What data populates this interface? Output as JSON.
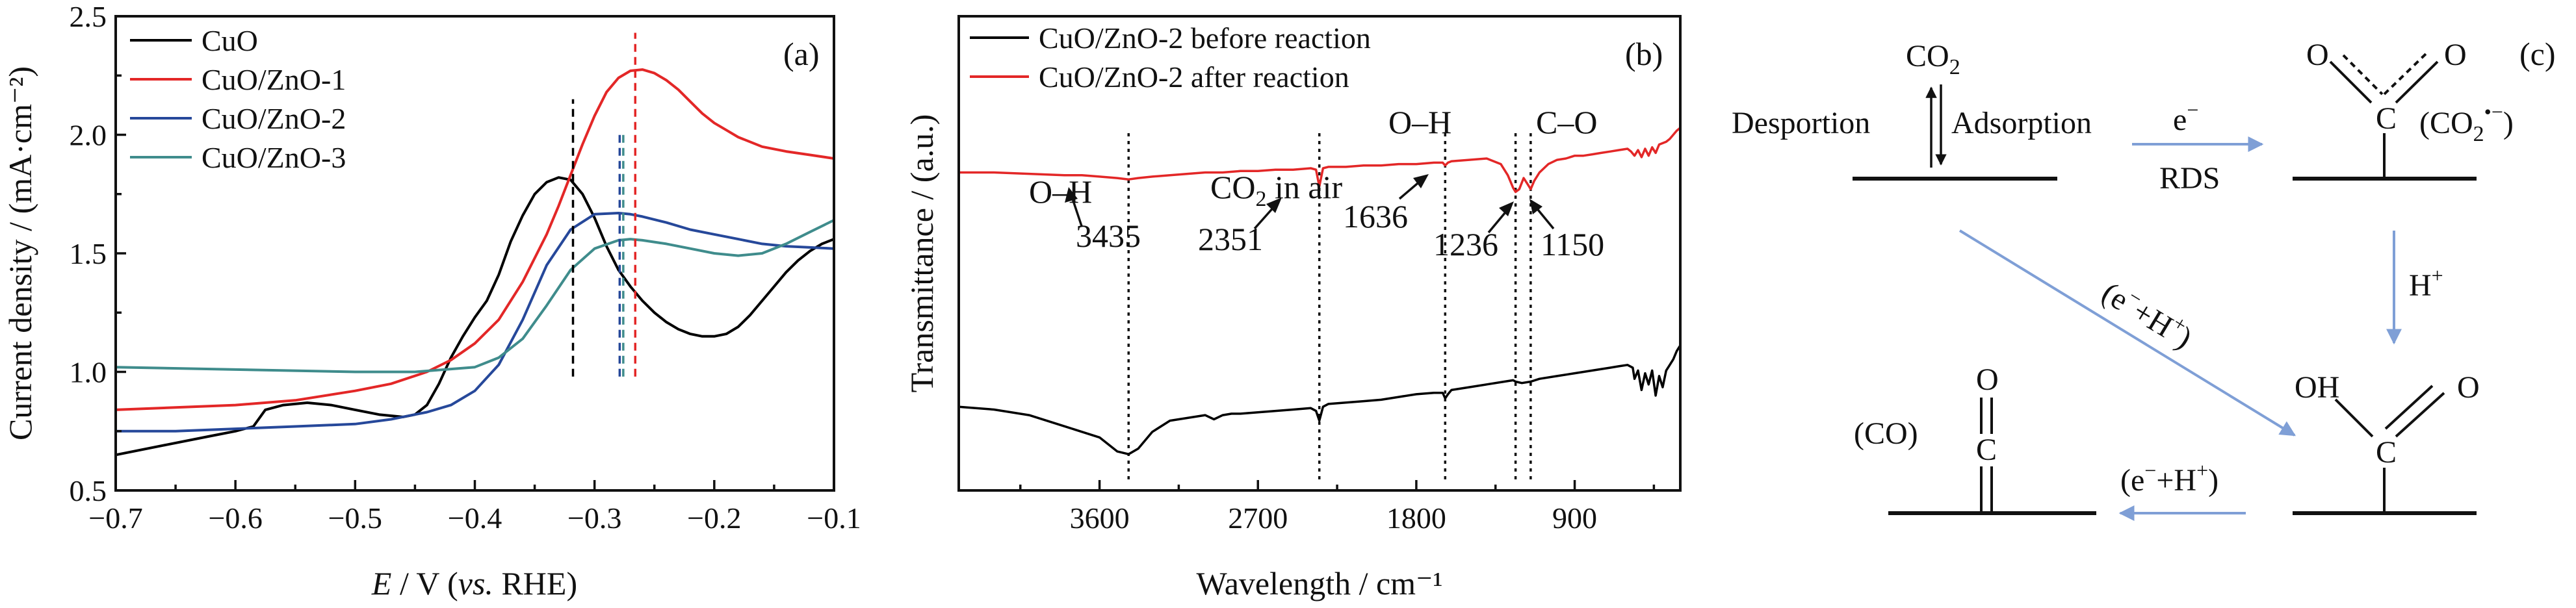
{
  "panels": {
    "a": {
      "label": "(a)"
    },
    "b": {
      "label": "(b)"
    },
    "c": {
      "label": "(c)"
    }
  },
  "chart_data": [
    {
      "panel": "a",
      "type": "line",
      "xlabel_italic": "E",
      "xlabel_mid": " / V (",
      "xlabel_vs": "vs.",
      "xlabel_end": " RHE)",
      "ylabel": "Current density / (mA·cm⁻²)",
      "xlim": [
        -0.7,
        -0.1
      ],
      "ylim": [
        0.5,
        2.5
      ],
      "x_ticks": [
        -0.7,
        -0.6,
        -0.5,
        -0.4,
        -0.3,
        -0.2,
        -0.1
      ],
      "x_tick_labels": [
        "−0.7",
        "−0.6",
        "−0.5",
        "−0.4",
        "−0.3",
        "−0.2",
        "−0.1"
      ],
      "y_ticks": [
        0.5,
        1.0,
        1.5,
        2.0,
        2.5
      ],
      "y_tick_labels": [
        "0.5",
        "1.0",
        "1.5",
        "2.0",
        "2.5"
      ],
      "legend_position": "top-left",
      "series": [
        {
          "name": "CuO",
          "color": "#000000",
          "x": [
            -0.7,
            -0.66,
            -0.62,
            -0.6,
            -0.585,
            -0.575,
            -0.56,
            -0.54,
            -0.52,
            -0.5,
            -0.48,
            -0.46,
            -0.45,
            -0.44,
            -0.43,
            -0.42,
            -0.41,
            -0.4,
            -0.39,
            -0.38,
            -0.37,
            -0.36,
            -0.35,
            -0.34,
            -0.33,
            -0.32,
            -0.31,
            -0.3,
            -0.29,
            -0.28,
            -0.27,
            -0.26,
            -0.25,
            -0.24,
            -0.23,
            -0.22,
            -0.21,
            -0.2,
            -0.19,
            -0.18,
            -0.17,
            -0.16,
            -0.15,
            -0.14,
            -0.13,
            -0.12,
            -0.11,
            -0.1
          ],
          "y": [
            0.65,
            0.69,
            0.73,
            0.75,
            0.77,
            0.84,
            0.86,
            0.87,
            0.86,
            0.84,
            0.82,
            0.81,
            0.82,
            0.86,
            0.95,
            1.06,
            1.15,
            1.23,
            1.3,
            1.41,
            1.55,
            1.66,
            1.75,
            1.8,
            1.82,
            1.81,
            1.75,
            1.65,
            1.53,
            1.43,
            1.36,
            1.3,
            1.25,
            1.21,
            1.18,
            1.16,
            1.15,
            1.15,
            1.16,
            1.19,
            1.24,
            1.3,
            1.36,
            1.42,
            1.47,
            1.51,
            1.54,
            1.56
          ]
        },
        {
          "name": "CuO/ZnO-1",
          "color": "#e32727",
          "x": [
            -0.7,
            -0.65,
            -0.6,
            -0.55,
            -0.5,
            -0.47,
            -0.44,
            -0.42,
            -0.4,
            -0.38,
            -0.36,
            -0.34,
            -0.33,
            -0.32,
            -0.31,
            -0.3,
            -0.29,
            -0.28,
            -0.27,
            -0.26,
            -0.25,
            -0.24,
            -0.23,
            -0.22,
            -0.21,
            -0.2,
            -0.19,
            -0.18,
            -0.16,
            -0.14,
            -0.12,
            -0.1
          ],
          "y": [
            0.84,
            0.85,
            0.86,
            0.88,
            0.92,
            0.95,
            1.0,
            1.05,
            1.12,
            1.22,
            1.38,
            1.58,
            1.7,
            1.83,
            1.96,
            2.08,
            2.18,
            2.24,
            2.27,
            2.275,
            2.26,
            2.23,
            2.19,
            2.14,
            2.09,
            2.05,
            2.02,
            1.99,
            1.95,
            1.93,
            1.915,
            1.9
          ]
        },
        {
          "name": "CuO/ZnO-2",
          "color": "#26489a",
          "x": [
            -0.7,
            -0.65,
            -0.6,
            -0.55,
            -0.5,
            -0.47,
            -0.44,
            -0.42,
            -0.4,
            -0.38,
            -0.36,
            -0.34,
            -0.32,
            -0.3,
            -0.28,
            -0.27,
            -0.26,
            -0.24,
            -0.22,
            -0.2,
            -0.18,
            -0.16,
            -0.14,
            -0.12,
            -0.1
          ],
          "y": [
            0.75,
            0.75,
            0.76,
            0.77,
            0.78,
            0.8,
            0.83,
            0.86,
            0.92,
            1.03,
            1.22,
            1.45,
            1.6,
            1.665,
            1.67,
            1.665,
            1.655,
            1.63,
            1.6,
            1.58,
            1.56,
            1.54,
            1.53,
            1.525,
            1.52
          ]
        },
        {
          "name": "CuO/ZnO-3",
          "color": "#3f8c8c",
          "x": [
            -0.7,
            -0.6,
            -0.5,
            -0.45,
            -0.4,
            -0.38,
            -0.36,
            -0.34,
            -0.32,
            -0.3,
            -0.28,
            -0.27,
            -0.26,
            -0.24,
            -0.22,
            -0.2,
            -0.18,
            -0.16,
            -0.14,
            -0.12,
            -0.1
          ],
          "y": [
            1.02,
            1.01,
            1.0,
            1.0,
            1.02,
            1.06,
            1.14,
            1.28,
            1.43,
            1.52,
            1.555,
            1.56,
            1.555,
            1.54,
            1.52,
            1.5,
            1.49,
            1.5,
            1.54,
            1.59,
            1.64
          ]
        }
      ],
      "reference_lines": [
        {
          "x": -0.318,
          "y_from": 0.98,
          "y_to": 2.15,
          "color": "#000000",
          "style": "dashed"
        },
        {
          "x": -0.266,
          "y_from": 0.98,
          "y_to": 2.43,
          "color": "#e32727",
          "style": "dashed"
        },
        {
          "x": -0.279,
          "y_from": 0.98,
          "y_to": 2.0,
          "color": "#26489a",
          "style": "dashed"
        },
        {
          "x": -0.276,
          "y_from": 0.98,
          "y_to": 2.0,
          "color": "#3f8c8c",
          "style": "dashed"
        }
      ]
    },
    {
      "panel": "b",
      "type": "line",
      "xlabel": "Wavelength / cm⁻¹",
      "ylabel": "Transmittance / (a.u.)",
      "xlim": [
        4400,
        300
      ],
      "x_ticks": [
        3600,
        2700,
        1800,
        900
      ],
      "x_tick_labels": [
        "3600",
        "2700",
        "1800",
        "900"
      ],
      "y_ticks": [],
      "legend_position": "top-left",
      "series": [
        {
          "name": "CuO/ZnO-2 before reaction",
          "color": "#000000",
          "x": [
            4400,
            4200,
            4000,
            3800,
            3700,
            3600,
            3500,
            3435,
            3380,
            3300,
            3200,
            3100,
            3000,
            2950,
            2900,
            2850,
            2800,
            2700,
            2600,
            2500,
            2400,
            2370,
            2351,
            2330,
            2300,
            2200,
            2100,
            2000,
            1900,
            1800,
            1700,
            1650,
            1636,
            1620,
            1600,
            1500,
            1400,
            1300,
            1250,
            1236,
            1200,
            1150,
            1100,
            1000,
            900,
            800,
            700,
            650,
            600,
            570,
            560,
            540,
            520,
            500,
            480,
            460,
            440,
            420,
            400,
            380,
            360,
            340,
            320,
            300
          ],
          "y": [
            0.3,
            0.29,
            0.27,
            0.23,
            0.21,
            0.19,
            0.14,
            0.13,
            0.15,
            0.21,
            0.25,
            0.26,
            0.27,
            0.255,
            0.27,
            0.275,
            0.275,
            0.28,
            0.285,
            0.29,
            0.295,
            0.285,
            0.25,
            0.3,
            0.31,
            0.315,
            0.32,
            0.325,
            0.335,
            0.345,
            0.35,
            0.35,
            0.33,
            0.345,
            0.36,
            0.37,
            0.38,
            0.39,
            0.395,
            0.39,
            0.385,
            0.39,
            0.4,
            0.41,
            0.42,
            0.43,
            0.44,
            0.445,
            0.45,
            0.44,
            0.4,
            0.43,
            0.36,
            0.42,
            0.38,
            0.43,
            0.34,
            0.41,
            0.37,
            0.43,
            0.45,
            0.47,
            0.5,
            0.52
          ]
        },
        {
          "name": "CuO/ZnO-2 after reaction",
          "color": "#e32727",
          "x": [
            4400,
            4200,
            4000,
            3800,
            3700,
            3600,
            3500,
            3435,
            3380,
            3300,
            3200,
            3100,
            3000,
            2900,
            2800,
            2700,
            2600,
            2500,
            2400,
            2370,
            2351,
            2330,
            2300,
            2200,
            2100,
            2000,
            1900,
            1800,
            1700,
            1650,
            1636,
            1620,
            1600,
            1500,
            1400,
            1320,
            1280,
            1250,
            1236,
            1215,
            1190,
            1170,
            1150,
            1130,
            1100,
            1050,
            1000,
            950,
            900,
            850,
            800,
            750,
            700,
            650,
            600,
            580,
            560,
            540,
            520,
            500,
            480,
            460,
            440,
            420,
            400,
            380,
            360,
            340,
            320,
            300
          ],
          "y": [
            1.14,
            1.14,
            1.135,
            1.13,
            1.13,
            1.125,
            1.12,
            1.115,
            1.12,
            1.125,
            1.13,
            1.135,
            1.14,
            1.14,
            1.145,
            1.145,
            1.15,
            1.15,
            1.155,
            1.15,
            1.09,
            1.155,
            1.16,
            1.16,
            1.165,
            1.165,
            1.17,
            1.17,
            1.175,
            1.175,
            1.165,
            1.175,
            1.18,
            1.185,
            1.19,
            1.17,
            1.13,
            1.085,
            1.07,
            1.08,
            1.12,
            1.1,
            1.08,
            1.11,
            1.14,
            1.17,
            1.185,
            1.19,
            1.2,
            1.2,
            1.205,
            1.21,
            1.215,
            1.22,
            1.225,
            1.215,
            1.2,
            1.22,
            1.195,
            1.225,
            1.2,
            1.23,
            1.21,
            1.24,
            1.245,
            1.25,
            1.26,
            1.275,
            1.29,
            1.3
          ]
        }
      ],
      "peak_lines": [
        3435,
        2351,
        1636,
        1236,
        1150
      ],
      "group_labels": {
        "oh1": "O–H",
        "co2_main": "CO",
        "co2_sub": "2",
        "co2_rest": " in air",
        "oh2": "O–H",
        "co": "C–O"
      },
      "peak_labels": [
        "3435",
        "2351",
        "1636",
        "1236",
        "1150"
      ]
    }
  ],
  "diagram": {
    "co2_main": "CO",
    "co2_sub": "2",
    "desportion": "Desportion",
    "adsorption": "Adsorption",
    "e_minus": "e",
    "minus_sup": "−",
    "rds": "RDS",
    "o": "O",
    "c": "C",
    "oh": "OH",
    "co2_radical_open": "(CO",
    "co2_radical_sub": "2",
    "co2_radical_sup": "•−",
    "co2_radical_close": ")",
    "h_plus": "H",
    "plus_sup": "+",
    "e_h_open": "(e",
    "e_h_mid": "+H",
    "e_h_close": ")",
    "co_label": "(CO)",
    "arrow_color": "#7f9fd6"
  }
}
